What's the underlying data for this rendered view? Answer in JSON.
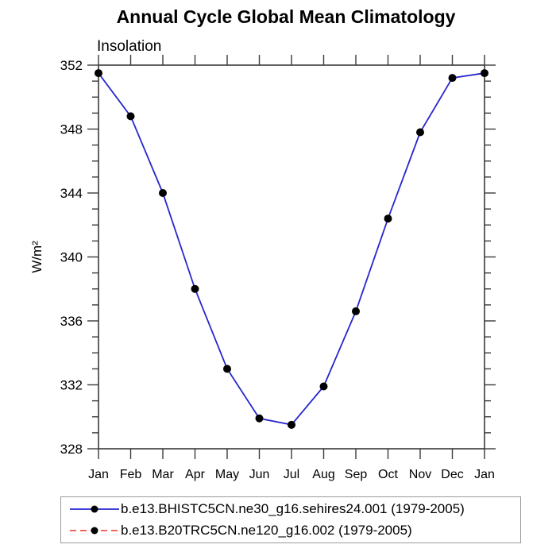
{
  "title": "Annual Cycle Global Mean Climatology",
  "subtitle": "Insolation",
  "colors": {
    "line_blue": "#2626cf",
    "line_red": "#f03030",
    "marker_black": "#000000",
    "axis": "#3a3a3a",
    "legend_border": "#9a9a9a"
  },
  "legend": {
    "entries": [
      {
        "label": "b.e13.BHISTC5CN.ne30_g16.sehires24.001 (1979-2005)",
        "color": "#2626cf",
        "style": "solid",
        "marker": "filled-circle"
      },
      {
        "label": "b.e13.B20TRC5CN.ne120_g16.002 (1979-2005)",
        "color": "#f03030",
        "style": "dashed",
        "marker": "filled-circle"
      }
    ]
  },
  "chart_data": {
    "type": "line",
    "title": "Annual Cycle Global Mean Climatology",
    "subtitle": "Insolation",
    "xlabel": "",
    "ylabel": "W/m²",
    "categories": [
      "Jan",
      "Feb",
      "Mar",
      "Apr",
      "May",
      "Jun",
      "Jul",
      "Aug",
      "Sep",
      "Oct",
      "Nov",
      "Dec",
      "Jan"
    ],
    "ylim": [
      328,
      352
    ],
    "ytick_major": 4,
    "ytick_minor": 1,
    "ytick_labels": [
      352,
      348,
      344,
      340,
      336,
      332,
      328
    ],
    "grid": false,
    "legend_position": "bottom",
    "series": [
      {
        "name": "b.e13.BHISTC5CN.ne30_g16.sehires24.001 (1979-2005)",
        "color": "#2626cf",
        "line_style": "solid",
        "marker": "filled-circle",
        "marker_color": "#000000",
        "values": [
          351.5,
          348.8,
          344.0,
          338.0,
          333.0,
          329.9,
          329.5,
          331.9,
          336.6,
          342.4,
          347.8,
          351.2,
          351.5
        ]
      },
      {
        "name": "b.e13.B20TRC5CN.ne120_g16.002 (1979-2005)",
        "color": "#f03030",
        "line_style": "dashed",
        "marker": "filled-circle",
        "marker_color": "#000000",
        "values": []
      }
    ]
  }
}
